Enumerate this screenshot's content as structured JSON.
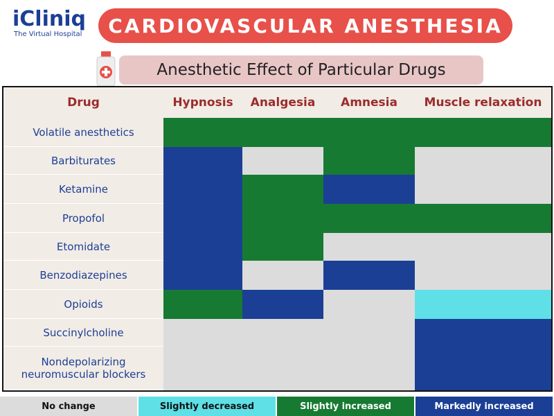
{
  "header": {
    "logo": "iCliniq",
    "tagline": "The Virtual Hospital",
    "title": "CARDIOVASCULAR ANESTHESIA",
    "subtitle": "Anesthetic Effect of Particular Drugs"
  },
  "table": {
    "columns": [
      "Drug",
      "Hypnosis",
      "Analgesia",
      "Amnesia",
      "Muscle relaxation"
    ],
    "rows": [
      {
        "drug": "Volatile anesthetics",
        "cells": [
          "#177a32",
          "#177a32",
          "#177a32",
          "#177a32"
        ]
      },
      {
        "drug": "Barbiturates",
        "cells": [
          "#1b3f95",
          "#dcdcdc",
          "#177a32",
          "#dcdcdc"
        ]
      },
      {
        "drug": "Ketamine",
        "cells": [
          "#1b3f95",
          "#177a32",
          "#1b3f95",
          "#dcdcdc"
        ]
      },
      {
        "drug": "Propofol",
        "cells": [
          "#1b3f95",
          "#177a32",
          "#177a32",
          "#177a32"
        ]
      },
      {
        "drug": "Etomidate",
        "cells": [
          "#1b3f95",
          "#177a32",
          "#dcdcdc",
          "#dcdcdc"
        ]
      },
      {
        "drug": "Benzodiazepines",
        "cells": [
          "#1b3f95",
          "#dcdcdc",
          "#1b3f95",
          "#dcdcdc"
        ]
      },
      {
        "drug": "Opioids",
        "cells": [
          "#177a32",
          "#1b3f95",
          "#dcdcdc",
          "#5ee0e6"
        ]
      },
      {
        "drug": "Succinylcholine",
        "cells": [
          "#dcdcdc",
          "#dcdcdc",
          "#dcdcdc",
          "#1b3f95"
        ]
      },
      {
        "drug": "Nondepolarizing neuromuscular blockers",
        "cells": [
          "#dcdcdc",
          "#dcdcdc",
          "#dcdcdc",
          "#1b3f95"
        ]
      }
    ]
  },
  "legend": [
    {
      "label": "No change",
      "color": "#dcdcdc"
    },
    {
      "label": "Slightly decreased",
      "color": "#5ee0e6"
    },
    {
      "label": "Slightly increased",
      "color": "#177a32"
    },
    {
      "label": "Markedly increased",
      "color": "#1b3f95"
    }
  ]
}
